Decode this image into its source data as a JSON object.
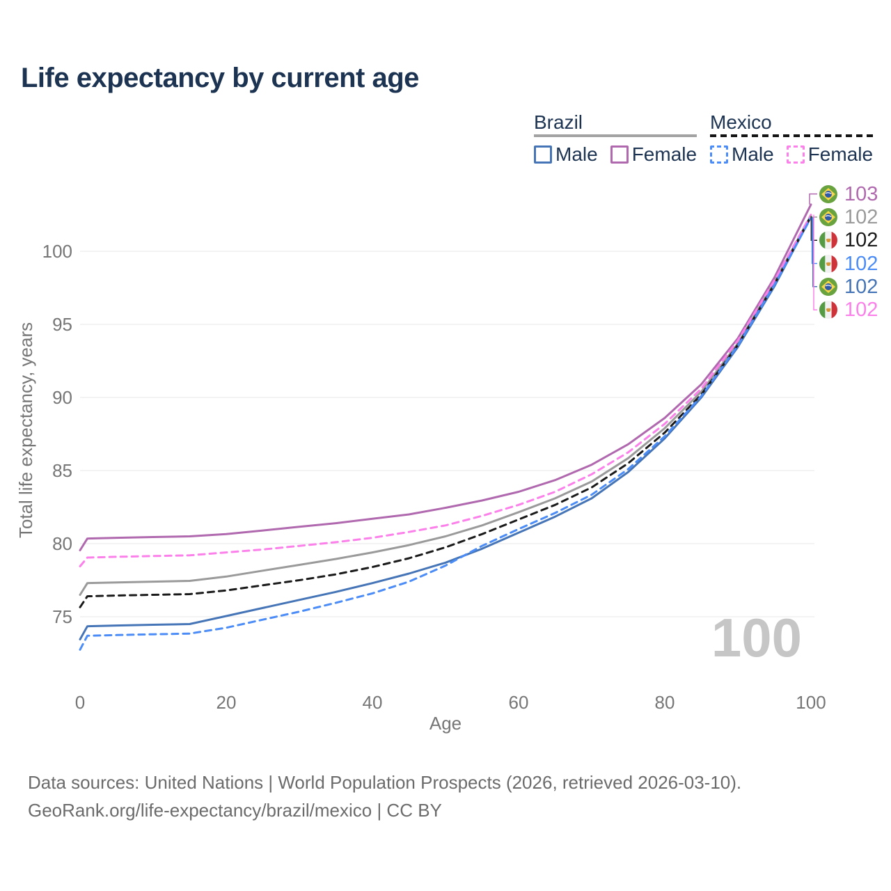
{
  "title": "Life expectancy by current age",
  "watermark": "100",
  "legend": {
    "groups": [
      {
        "label": "Brazil",
        "line_style": "solid",
        "underline_color": "#a3a3a3",
        "items": [
          {
            "label": "Male",
            "color": "#4675b7",
            "dashed": false
          },
          {
            "label": "Female",
            "color": "#b068ae",
            "dashed": false
          }
        ]
      },
      {
        "label": "Mexico",
        "line_style": "dashed",
        "underline_color": "#141414",
        "items": [
          {
            "label": "Male",
            "color": "#4b8cf7",
            "dashed": true
          },
          {
            "label": "Female",
            "color": "#fb80ea",
            "dashed": true
          }
        ]
      }
    ]
  },
  "colors": {
    "title_text": "#1c3352",
    "axis_text": "#767676",
    "grid": "#ececec",
    "watermark": "#c6c6c6"
  },
  "chart_data": {
    "type": "line",
    "title": "Life expectancy by current age",
    "xlabel": "Age",
    "ylabel": "Total life expectancy, years",
    "xlim": [
      0,
      100
    ],
    "ylim": [
      72,
      104
    ],
    "xticks": [
      0,
      20,
      40,
      60,
      80,
      100
    ],
    "yticks": [
      75,
      80,
      85,
      90,
      95,
      100
    ],
    "grid": "horizontal-only",
    "legend_position": "top-right",
    "x": [
      0,
      1,
      5,
      10,
      15,
      20,
      25,
      30,
      35,
      40,
      45,
      50,
      55,
      60,
      65,
      70,
      75,
      80,
      85,
      90,
      95,
      100
    ],
    "series": [
      {
        "name": "Brazil Total",
        "country": "Brazil",
        "group": "Total",
        "color": "#9a9a9a",
        "dashed": false,
        "values": [
          76.5,
          77.3,
          77.35,
          77.4,
          77.45,
          77.75,
          78.15,
          78.55,
          78.95,
          79.4,
          79.9,
          80.5,
          81.25,
          82.15,
          83.1,
          84.25,
          85.85,
          87.9,
          90.4,
          93.7,
          97.9,
          102.45
        ]
      },
      {
        "name": "Brazil Female",
        "country": "Brazil",
        "group": "Female",
        "color": "#b068ae",
        "dashed": false,
        "values": [
          79.55,
          80.35,
          80.4,
          80.45,
          80.5,
          80.65,
          80.9,
          81.15,
          81.4,
          81.7,
          82.0,
          82.45,
          82.95,
          83.55,
          84.35,
          85.4,
          86.8,
          88.6,
          90.9,
          94.05,
          98.2,
          103.2
        ]
      },
      {
        "name": "Brazil Male",
        "country": "Brazil",
        "group": "Male",
        "color": "#4675b7",
        "dashed": false,
        "values": [
          73.45,
          74.35,
          74.4,
          74.45,
          74.5,
          75.05,
          75.6,
          76.15,
          76.7,
          77.3,
          77.95,
          78.7,
          79.65,
          80.75,
          81.85,
          83.1,
          84.9,
          87.2,
          90.0,
          93.45,
          97.6,
          102.35
        ]
      },
      {
        "name": "Mexico Total",
        "country": "Mexico",
        "group": "Total",
        "color": "#1a1a1a",
        "dashed": true,
        "values": [
          75.65,
          76.4,
          76.45,
          76.5,
          76.55,
          76.8,
          77.15,
          77.5,
          77.9,
          78.4,
          79.0,
          79.75,
          80.65,
          81.65,
          82.65,
          83.85,
          85.5,
          87.6,
          90.2,
          93.6,
          97.75,
          102.4
        ]
      },
      {
        "name": "Mexico Female",
        "country": "Mexico",
        "group": "Female",
        "color": "#fb80ea",
        "dashed": true,
        "values": [
          78.45,
          79.05,
          79.1,
          79.15,
          79.2,
          79.4,
          79.6,
          79.85,
          80.1,
          80.4,
          80.8,
          81.25,
          81.9,
          82.65,
          83.55,
          84.75,
          86.25,
          88.2,
          90.6,
          93.9,
          98.0,
          102.5
        ]
      },
      {
        "name": "Mexico Male",
        "country": "Mexico",
        "group": "Male",
        "color": "#4b8cf7",
        "dashed": true,
        "values": [
          72.75,
          73.7,
          73.75,
          73.8,
          73.85,
          74.25,
          74.8,
          75.35,
          75.95,
          76.6,
          77.4,
          78.5,
          79.85,
          81.0,
          82.1,
          83.35,
          85.1,
          87.35,
          90.1,
          93.55,
          97.7,
          102.3
        ]
      }
    ],
    "end_labels": [
      {
        "country": "Brazil",
        "series": "Brazil Female",
        "value": "103",
        "color": "#b068ae"
      },
      {
        "country": "Brazil",
        "series": "Brazil Total",
        "value": "102",
        "color": "#9a9a9a"
      },
      {
        "country": "Mexico",
        "series": "Mexico Total",
        "value": "102",
        "color": "#1a1a1a"
      },
      {
        "country": "Mexico",
        "series": "Mexico Male",
        "value": "102",
        "color": "#4b8cf7"
      },
      {
        "country": "Brazil",
        "series": "Brazil Male",
        "value": "102",
        "color": "#4675b7"
      },
      {
        "country": "Mexico",
        "series": "Mexico Female",
        "value": "102",
        "color": "#fb80ea"
      }
    ]
  },
  "footer": {
    "line1": "Data sources: United Nations | World Population Prospects (2026, retrieved 2026-03-10).",
    "line2": "GeoRank.org/life-expectancy/brazil/mexico | CC BY"
  }
}
